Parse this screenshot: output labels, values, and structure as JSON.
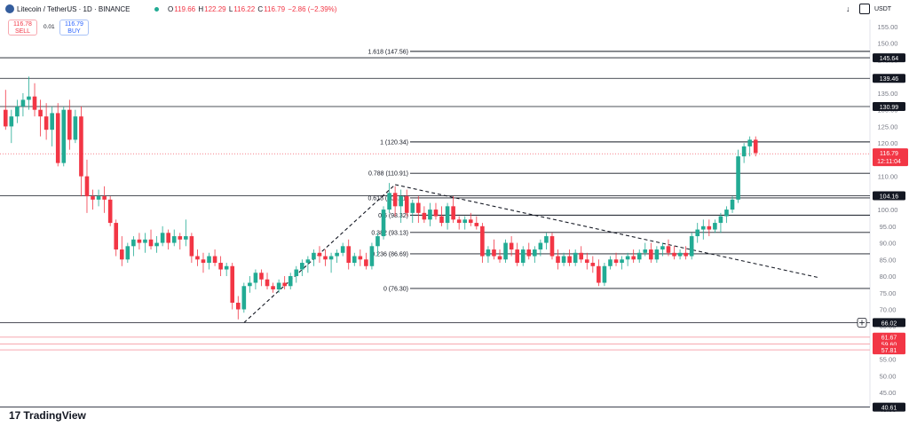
{
  "header": {
    "title": "Litecoin / TetherUS · 1D · BINANCE",
    "ohlc": [
      {
        "label": "O",
        "value": "119.66"
      },
      {
        "label": "H",
        "value": "122.29"
      },
      {
        "label": "L",
        "value": "116.22"
      },
      {
        "label": "C",
        "value": "116.79"
      },
      {
        "label": "",
        "value": "−2.86 (−2.39%)"
      }
    ],
    "currency": "USDT"
  },
  "trade": {
    "sell_price": "116.78",
    "sell_label": "SELL",
    "spread": "0.01",
    "buy_price": "116.79",
    "buy_label": "BUY"
  },
  "brand": "TradingView",
  "colors": {
    "up": "#22ab94",
    "down": "#f23645",
    "level": "#131722",
    "red_level": "#f7a9b0"
  },
  "chart_data": {
    "type": "candlestick",
    "y_axis": {
      "ticks": [
        155.0,
        150.0,
        145.0,
        140.0,
        135.0,
        130.0,
        125.0,
        120.0,
        115.0,
        110.0,
        105.0,
        100.0,
        95.0,
        90.0,
        85.0,
        80.0,
        75.0,
        70.0,
        65.0,
        60.0,
        55.0,
        50.0,
        45.0,
        40.0
      ],
      "ylim": [
        38,
        157
      ],
      "unit": "USDT"
    },
    "horizontal_levels": [
      {
        "value": 145.64,
        "label": "145.64",
        "color": "#131722"
      },
      {
        "value": 139.46,
        "label": "139.46",
        "color": "#131722"
      },
      {
        "value": 130.99,
        "label": "130.99",
        "color": "#131722"
      },
      {
        "value": 104.16,
        "label": "104.16",
        "color": "#131722"
      },
      {
        "value": 66.02,
        "label": "66.02",
        "color": "#131722"
      },
      {
        "value": 61.67,
        "label": "61.67",
        "color": "#f23645"
      },
      {
        "value": 59.6,
        "label": "59.60",
        "color": "#f23645"
      },
      {
        "value": 57.81,
        "label": "57.81",
        "color": "#f23645"
      },
      {
        "value": 40.61,
        "label": "40.61",
        "color": "#131722"
      }
    ],
    "current_price": {
      "value": 116.79,
      "label": "116.79",
      "countdown": "12:11:04"
    },
    "fibonacci": [
      {
        "ratio": "1.618",
        "value": 147.56,
        "label": "1.618 (147.56)"
      },
      {
        "ratio": "1",
        "value": 120.34,
        "label": "1 (120.34)"
      },
      {
        "ratio": "0.788",
        "value": 110.91,
        "label": "0.788 (110.91)"
      },
      {
        "ratio": "0.618",
        "value": 103.51,
        "label": "0.618 (103.51)"
      },
      {
        "ratio": "0.5",
        "value": 98.32,
        "label": "0.5 (98.32)"
      },
      {
        "ratio": "0.382",
        "value": 93.13,
        "label": "0.382 (93.13)"
      },
      {
        "ratio": "0.236",
        "value": 86.69,
        "label": "0.236 (86.69)"
      },
      {
        "ratio": "0",
        "value": 76.3,
        "label": "0 (76.30)"
      }
    ],
    "dashed_lines": [
      {
        "from": {
          "index": 41,
          "value": 66.0
        },
        "to": {
          "index": 67,
          "value": 107.5
        }
      },
      {
        "from": {
          "index": 67,
          "value": 107.5
        },
        "to": {
          "index": 140,
          "value": 79.5
        }
      }
    ],
    "candles": [
      [
        130,
        136,
        124,
        125
      ],
      [
        125,
        130,
        120,
        128
      ],
      [
        128,
        133,
        126,
        131
      ],
      [
        131,
        135,
        128,
        133
      ],
      [
        133,
        140,
        130,
        134
      ],
      [
        134,
        138,
        128,
        130
      ],
      [
        130,
        133,
        122,
        128
      ],
      [
        128,
        132,
        121,
        124
      ],
      [
        124,
        131,
        119,
        129
      ],
      [
        129,
        132,
        113,
        114
      ],
      [
        114,
        131,
        113,
        130
      ],
      [
        130,
        133,
        118,
        121
      ],
      [
        121,
        130,
        120,
        128
      ],
      [
        128,
        131,
        104,
        110
      ],
      [
        110,
        115,
        99,
        104
      ],
      [
        104,
        106,
        100,
        103
      ],
      [
        103,
        106,
        101,
        104
      ],
      [
        104,
        107,
        99,
        103
      ],
      [
        103,
        104,
        95,
        96
      ],
      [
        96,
        97,
        86,
        88
      ],
      [
        88,
        92,
        83,
        85
      ],
      [
        85,
        90,
        84,
        89
      ],
      [
        89,
        92,
        86,
        91
      ],
      [
        91,
        93,
        88,
        90
      ],
      [
        90,
        93,
        87,
        91
      ],
      [
        91,
        94,
        88,
        89
      ],
      [
        89,
        92,
        87,
        90
      ],
      [
        90,
        95,
        89,
        93
      ],
      [
        93,
        94,
        88,
        90
      ],
      [
        90,
        94,
        89,
        92
      ],
      [
        92,
        93,
        88,
        91
      ],
      [
        91,
        97,
        89,
        92
      ],
      [
        92,
        93,
        84,
        86
      ],
      [
        86,
        88,
        83,
        85
      ],
      [
        85,
        87,
        81,
        84
      ],
      [
        84,
        87,
        82,
        86
      ],
      [
        86,
        88,
        83,
        84
      ],
      [
        84,
        86,
        80,
        82
      ],
      [
        82,
        84,
        80,
        83
      ],
      [
        83,
        84,
        70,
        72
      ],
      [
        72,
        74,
        67,
        70
      ],
      [
        70,
        78,
        69,
        77
      ],
      [
        77,
        80,
        75,
        78
      ],
      [
        78,
        82,
        76,
        81
      ],
      [
        81,
        82,
        77,
        79
      ],
      [
        79,
        81,
        76,
        77
      ],
      [
        77,
        78,
        75,
        76
      ],
      [
        76,
        79,
        75,
        78
      ],
      [
        78,
        80,
        76,
        77
      ],
      [
        77,
        81,
        76,
        80
      ],
      [
        80,
        83,
        78,
        82
      ],
      [
        82,
        85,
        80,
        84
      ],
      [
        84,
        86,
        81,
        85
      ],
      [
        85,
        88,
        83,
        87
      ],
      [
        87,
        89,
        84,
        86
      ],
      [
        86,
        88,
        83,
        85
      ],
      [
        85,
        87,
        81,
        86
      ],
      [
        86,
        88,
        84,
        87
      ],
      [
        87,
        90,
        86,
        89
      ],
      [
        89,
        91,
        82,
        84
      ],
      [
        84,
        87,
        83,
        86
      ],
      [
        86,
        88,
        83,
        85
      ],
      [
        85,
        87,
        82,
        83
      ],
      [
        83,
        90,
        82,
        89
      ],
      [
        89,
        93,
        86,
        92
      ],
      [
        92,
        101,
        91,
        100
      ],
      [
        100,
        108,
        99,
        105
      ],
      [
        105,
        107,
        98,
        101
      ],
      [
        101,
        106,
        96,
        104
      ],
      [
        104,
        106,
        98,
        99
      ],
      [
        99,
        103,
        96,
        102
      ],
      [
        102,
        104,
        96,
        99
      ],
      [
        99,
        101,
        96,
        97
      ],
      [
        97,
        102,
        95,
        100
      ],
      [
        100,
        102,
        97,
        98
      ],
      [
        98,
        101,
        95,
        96
      ],
      [
        96,
        102,
        94,
        101
      ],
      [
        101,
        104,
        96,
        97
      ],
      [
        97,
        98,
        94,
        96
      ],
      [
        96,
        98,
        94,
        97
      ],
      [
        97,
        99,
        95,
        96
      ],
      [
        96,
        98,
        94,
        95
      ],
      [
        95,
        96,
        84,
        86
      ],
      [
        86,
        89,
        84,
        88
      ],
      [
        88,
        91,
        85,
        86
      ],
      [
        86,
        88,
        84,
        85
      ],
      [
        85,
        91,
        84,
        90
      ],
      [
        90,
        92,
        86,
        88
      ],
      [
        88,
        90,
        83,
        84
      ],
      [
        84,
        89,
        83,
        88
      ],
      [
        88,
        90,
        85,
        86
      ],
      [
        86,
        89,
        84,
        88
      ],
      [
        88,
        91,
        86,
        90
      ],
      [
        90,
        93,
        88,
        92
      ],
      [
        92,
        93,
        85,
        86
      ],
      [
        86,
        88,
        82,
        84
      ],
      [
        84,
        87,
        83,
        86
      ],
      [
        86,
        88,
        83,
        84
      ],
      [
        84,
        88,
        83,
        87
      ],
      [
        87,
        89,
        84,
        85
      ],
      [
        85,
        87,
        82,
        84
      ],
      [
        84,
        86,
        81,
        83
      ],
      [
        83,
        85,
        77,
        78
      ],
      [
        78,
        84,
        77,
        83
      ],
      [
        83,
        86,
        82,
        85
      ],
      [
        85,
        87,
        83,
        84
      ],
      [
        84,
        86,
        82,
        85
      ],
      [
        85,
        87,
        83,
        86
      ],
      [
        86,
        88,
        84,
        85
      ],
      [
        85,
        88,
        84,
        87
      ],
      [
        87,
        90,
        86,
        88
      ],
      [
        88,
        90,
        84,
        85
      ],
      [
        85,
        89,
        84,
        88
      ],
      [
        88,
        90,
        86,
        89
      ],
      [
        89,
        91,
        86,
        87
      ],
      [
        87,
        89,
        85,
        86
      ],
      [
        86,
        88,
        85,
        87
      ],
      [
        87,
        89,
        85,
        86
      ],
      [
        86,
        93,
        85,
        92
      ],
      [
        92,
        96,
        90,
        94
      ],
      [
        94,
        97,
        91,
        95
      ],
      [
        95,
        97,
        92,
        94
      ],
      [
        94,
        97,
        93,
        96
      ],
      [
        96,
        99,
        93,
        98
      ],
      [
        98,
        101,
        96,
        100
      ],
      [
        100,
        104,
        99,
        103
      ],
      [
        103,
        118,
        102,
        116
      ],
      [
        116,
        120,
        114,
        119
      ],
      [
        119,
        122,
        116,
        121
      ],
      [
        121,
        122,
        116,
        117
      ]
    ]
  }
}
